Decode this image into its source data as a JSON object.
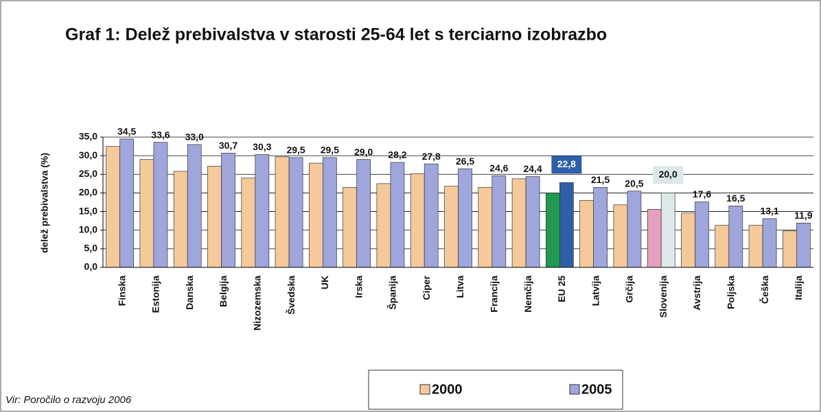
{
  "chart_data": {
    "type": "bar",
    "title": "Graf 1: Delež prebivalstva v starosti 25-64 let s terciarno izobrazbo",
    "ylabel": "delež prebivalstva (%)",
    "source": "Vir: Poročilo o razvoju 2006",
    "categories": [
      "Finska",
      "Estonija",
      "Danska",
      "Belgija",
      "Nizozemska",
      "Švedska",
      "UK",
      "Irska",
      "Španija",
      "Ciper",
      "Litva",
      "Francija",
      "Nemčija",
      "EU 25",
      "Latvija",
      "Grčija",
      "Slovenija",
      "Avstrija",
      "Poljska",
      "Češka",
      "Italija"
    ],
    "series": [
      {
        "name": "2000",
        "color": "#f5c99a",
        "colors": [
          "#f5c99a",
          "#f5c99a",
          "#f5c99a",
          "#f5c99a",
          "#f5c99a",
          "#f5c99a",
          "#f5c99a",
          "#f5c99a",
          "#f5c99a",
          "#f5c99a",
          "#f5c99a",
          "#f5c99a",
          "#f5c99a",
          "#1f9a4f",
          "#f5c99a",
          "#f5c99a",
          "#e6a0c0",
          "#f5c99a",
          "#f5c99a",
          "#f5c99a",
          "#f5c99a"
        ],
        "values": [
          32.5,
          29,
          25.8,
          27.2,
          24,
          29.7,
          28,
          21.5,
          22.5,
          25.2,
          21.8,
          21.5,
          23.8,
          20,
          18,
          16.8,
          15.6,
          14.6,
          11.3,
          11.3,
          9.8
        ]
      },
      {
        "name": "2005",
        "color": "#9ea6dc",
        "colors": [
          "#9ea6dc",
          "#9ea6dc",
          "#9ea6dc",
          "#9ea6dc",
          "#9ea6dc",
          "#9ea6dc",
          "#9ea6dc",
          "#9ea6dc",
          "#9ea6dc",
          "#9ea6dc",
          "#9ea6dc",
          "#9ea6dc",
          "#9ea6dc",
          "#2e5fa8",
          "#9ea6dc",
          "#9ea6dc",
          "#dde8e8",
          "#9ea6dc",
          "#9ea6dc",
          "#9ea6dc",
          "#9ea6dc"
        ],
        "values": [
          34.5,
          33.6,
          33.0,
          30.7,
          30.3,
          29.5,
          29.5,
          29.0,
          28.2,
          27.8,
          26.5,
          24.6,
          24.4,
          22.8,
          21.5,
          20.5,
          20.0,
          17.6,
          16.5,
          13.1,
          11.9
        ],
        "value_labels": [
          "34,5",
          "33,6",
          "33,0",
          "30,7",
          "30,3",
          "29,5",
          "29,5",
          "29,0",
          "28,2",
          "27,8",
          "26,5",
          "24,6",
          "24,4",
          "22,8",
          "21,5",
          "20,5",
          "20,0",
          "17,6",
          "16,5",
          "13,1",
          "11,9"
        ]
      }
    ],
    "ylim": [
      0,
      35
    ],
    "yticks": [
      {
        "value": 0,
        "label": "0,0"
      },
      {
        "value": 5,
        "label": "5,0"
      },
      {
        "value": 10,
        "label": "10,0"
      },
      {
        "value": 15,
        "label": "15,0"
      },
      {
        "value": 20,
        "label": "20,0"
      },
      {
        "value": 25,
        "label": "25,0"
      },
      {
        "value": 30,
        "label": "30,0"
      },
      {
        "value": 35,
        "label": "35,0"
      }
    ],
    "grid": true
  }
}
